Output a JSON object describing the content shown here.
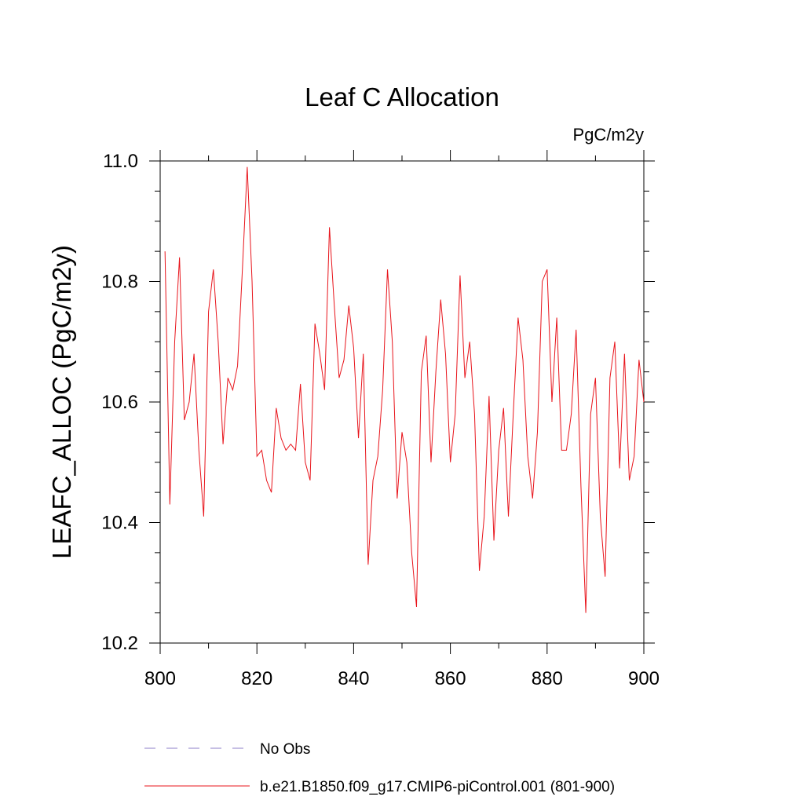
{
  "chart_data": {
    "type": "line",
    "title": "Leaf C Allocation",
    "units": "PgC/m2y",
    "ylabel": "LEAFC_ALLOC  (PgC/m2y)",
    "xlabel": "",
    "xlim": [
      800,
      900
    ],
    "ylim": [
      10.2,
      11.0
    ],
    "x_ticks": [
      800,
      820,
      840,
      860,
      880,
      900
    ],
    "x_tick_labels": [
      "800",
      "820",
      "840",
      "860",
      "880",
      "900"
    ],
    "y_ticks": [
      10.2,
      10.4,
      10.6,
      10.8,
      11.0
    ],
    "y_tick_labels": [
      "10.2",
      "10.4",
      "10.6",
      "10.8",
      "11.0"
    ],
    "grid": false,
    "legend_position": "bottom",
    "series": [
      {
        "name": "No Obs",
        "style": "dashed",
        "color": "#8c7fc9",
        "x": [],
        "values": []
      },
      {
        "name": "b.e21.B1850.f09_g17.CMIP6-piControl.001 (801-900)",
        "style": "solid",
        "color": "#e8141b",
        "x": [
          801,
          802,
          803,
          804,
          805,
          806,
          807,
          808,
          809,
          810,
          811,
          812,
          813,
          814,
          815,
          816,
          817,
          818,
          819,
          820,
          821,
          822,
          823,
          824,
          825,
          826,
          827,
          828,
          829,
          830,
          831,
          832,
          833,
          834,
          835,
          836,
          837,
          838,
          839,
          840,
          841,
          842,
          843,
          844,
          845,
          846,
          847,
          848,
          849,
          850,
          851,
          852,
          853,
          854,
          855,
          856,
          857,
          858,
          859,
          860,
          861,
          862,
          863,
          864,
          865,
          866,
          867,
          868,
          869,
          870,
          871,
          872,
          873,
          874,
          875,
          876,
          877,
          878,
          879,
          880,
          881,
          882,
          883,
          884,
          885,
          886,
          887,
          888,
          889,
          890,
          891,
          892,
          893,
          894,
          895,
          896,
          897,
          898,
          899,
          900
        ],
        "values": [
          10.85,
          10.43,
          10.7,
          10.84,
          10.57,
          10.6,
          10.68,
          10.52,
          10.41,
          10.75,
          10.82,
          10.7,
          10.53,
          10.64,
          10.62,
          10.66,
          10.82,
          10.99,
          10.8,
          10.51,
          10.52,
          10.47,
          10.45,
          10.59,
          10.54,
          10.52,
          10.53,
          10.52,
          10.63,
          10.5,
          10.47,
          10.73,
          10.68,
          10.62,
          10.89,
          10.76,
          10.64,
          10.67,
          10.76,
          10.69,
          10.54,
          10.68,
          10.33,
          10.47,
          10.51,
          10.62,
          10.82,
          10.7,
          10.44,
          10.55,
          10.5,
          10.35,
          10.26,
          10.65,
          10.71,
          10.5,
          10.65,
          10.77,
          10.68,
          10.5,
          10.58,
          10.81,
          10.64,
          10.7,
          10.58,
          10.32,
          10.41,
          10.61,
          10.37,
          10.52,
          10.59,
          10.41,
          10.58,
          10.74,
          10.67,
          10.51,
          10.44,
          10.55,
          10.8,
          10.82,
          10.6,
          10.74,
          10.52,
          10.52,
          10.58,
          10.72,
          10.46,
          10.25,
          10.58,
          10.64,
          10.41,
          10.31,
          10.64,
          10.7,
          10.49,
          10.68,
          10.47,
          10.51,
          10.67,
          10.6
        ]
      }
    ]
  }
}
